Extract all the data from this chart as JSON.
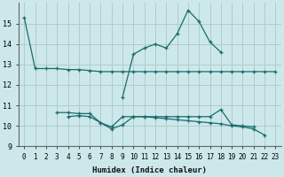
{
  "xlabel": "Humidex (Indice chaleur)",
  "background_color": "#cce8ea",
  "grid_color": "#b0cccc",
  "line_color": "#1a6b6b",
  "xlim": [
    -0.5,
    23.5
  ],
  "ylim": [
    9,
    16
  ],
  "yticks": [
    9,
    10,
    11,
    12,
    13,
    14,
    15
  ],
  "xticks": [
    0,
    1,
    2,
    3,
    4,
    5,
    6,
    7,
    8,
    9,
    10,
    11,
    12,
    13,
    14,
    15,
    16,
    17,
    18,
    19,
    20,
    21,
    22,
    23
  ],
  "series": [
    [
      15.3,
      12.8,
      12.8,
      12.8,
      12.75,
      12.75,
      12.7,
      12.65,
      12.65,
      12.65,
      12.65,
      12.65,
      12.65,
      12.65,
      12.65,
      12.65,
      12.65,
      12.65,
      12.65,
      12.65,
      12.65,
      12.65,
      12.65,
      12.65
    ],
    [
      null,
      null,
      null,
      10.65,
      10.65,
      10.6,
      10.6,
      10.15,
      9.95,
      10.45,
      10.45,
      10.45,
      10.45,
      10.45,
      10.45,
      10.45,
      10.45,
      10.45,
      10.8,
      10.05,
      10.0,
      9.95,
      null,
      null
    ],
    [
      null,
      null,
      null,
      null,
      10.45,
      10.5,
      10.45,
      10.15,
      9.85,
      10.05,
      10.45,
      10.45,
      10.4,
      10.35,
      10.3,
      10.25,
      10.2,
      10.15,
      10.1,
      10.0,
      9.95,
      9.85,
      9.55,
      null
    ],
    [
      null,
      null,
      null,
      null,
      null,
      null,
      null,
      null,
      null,
      11.4,
      13.5,
      13.8,
      14.0,
      13.8,
      14.5,
      15.65,
      15.1,
      14.1,
      13.6,
      null,
      null,
      null,
      null,
      null
    ]
  ]
}
